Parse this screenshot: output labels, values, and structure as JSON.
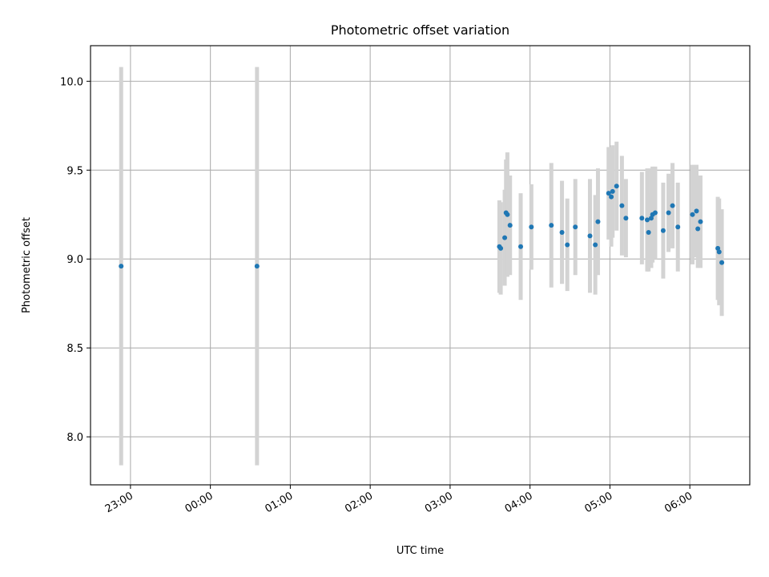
{
  "chart_data": {
    "type": "scatter",
    "title": "Photometric offset variation",
    "xlabel": "UTC time",
    "ylabel": "Photometric offset",
    "x_unit": "UTC time (HH:MM), spanning midnight into next day",
    "xlim": [
      "22:30",
      "06:45"
    ],
    "ylim": [
      7.73,
      10.2
    ],
    "grid": true,
    "x_ticks": [
      "23:00",
      "00:00",
      "01:00",
      "02:00",
      "03:00",
      "04:00",
      "05:00",
      "06:00"
    ],
    "y_ticks": [
      "8.0",
      "8.5",
      "9.0",
      "9.5",
      "10.0"
    ],
    "colors": {
      "points": "#1f77b4",
      "errorbars": "#d3d3d3",
      "grid": "#b0b0b0"
    },
    "points": [
      {
        "x": "22:53",
        "y": 8.96,
        "err": 1.12
      },
      {
        "x": "00:35",
        "y": 8.96,
        "err": 1.12
      },
      {
        "x": "03:37",
        "y": 9.07,
        "err": 0.26
      },
      {
        "x": "03:38",
        "y": 9.06,
        "err": 0.26
      },
      {
        "x": "03:41",
        "y": 9.12,
        "err": 0.27
      },
      {
        "x": "03:42",
        "y": 9.26,
        "err": 0.3
      },
      {
        "x": "03:43",
        "y": 9.25,
        "err": 0.35
      },
      {
        "x": "03:45",
        "y": 9.19,
        "err": 0.28
      },
      {
        "x": "03:53",
        "y": 9.07,
        "err": 0.3
      },
      {
        "x": "04:01",
        "y": 9.18,
        "err": 0.24
      },
      {
        "x": "04:16",
        "y": 9.19,
        "err": 0.35
      },
      {
        "x": "04:24",
        "y": 9.15,
        "err": 0.29
      },
      {
        "x": "04:28",
        "y": 9.08,
        "err": 0.26
      },
      {
        "x": "04:34",
        "y": 9.18,
        "err": 0.27
      },
      {
        "x": "04:45",
        "y": 9.13,
        "err": 0.32
      },
      {
        "x": "04:49",
        "y": 9.08,
        "err": 0.28
      },
      {
        "x": "04:51",
        "y": 9.21,
        "err": 0.3
      },
      {
        "x": "04:59",
        "y": 9.37,
        "err": 0.26
      },
      {
        "x": "05:01",
        "y": 9.35,
        "err": 0.28
      },
      {
        "x": "05:02",
        "y": 9.38,
        "err": 0.26
      },
      {
        "x": "05:05",
        "y": 9.41,
        "err": 0.25
      },
      {
        "x": "05:09",
        "y": 9.3,
        "err": 0.28
      },
      {
        "x": "05:12",
        "y": 9.23,
        "err": 0.22
      },
      {
        "x": "05:24",
        "y": 9.23,
        "err": 0.26
      },
      {
        "x": "05:28",
        "y": 9.22,
        "err": 0.29
      },
      {
        "x": "05:29",
        "y": 9.15,
        "err": 0.22
      },
      {
        "x": "05:31",
        "y": 9.23,
        "err": 0.28
      },
      {
        "x": "05:32",
        "y": 9.25,
        "err": 0.27
      },
      {
        "x": "05:34",
        "y": 9.26,
        "err": 0.26
      },
      {
        "x": "05:40",
        "y": 9.16,
        "err": 0.27
      },
      {
        "x": "05:44",
        "y": 9.26,
        "err": 0.22
      },
      {
        "x": "05:47",
        "y": 9.3,
        "err": 0.24
      },
      {
        "x": "05:51",
        "y": 9.18,
        "err": 0.25
      },
      {
        "x": "06:02",
        "y": 9.25,
        "err": 0.28
      },
      {
        "x": "06:05",
        "y": 9.27,
        "err": 0.26
      },
      {
        "x": "06:06",
        "y": 9.17,
        "err": 0.22
      },
      {
        "x": "06:08",
        "y": 9.21,
        "err": 0.26
      },
      {
        "x": "06:21",
        "y": 9.06,
        "err": 0.29
      },
      {
        "x": "06:22",
        "y": 9.04,
        "err": 0.3
      },
      {
        "x": "06:24",
        "y": 8.98,
        "err": 0.3
      }
    ]
  }
}
